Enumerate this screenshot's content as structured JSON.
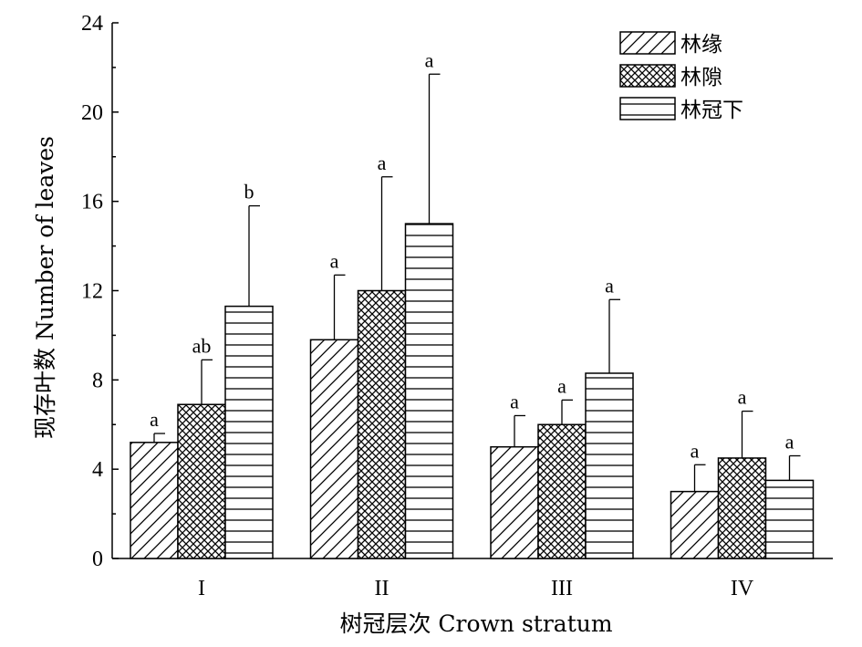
{
  "chart_data": {
    "type": "bar",
    "xlabel": "树冠层次 Crown stratum",
    "ylabel": "现存叶数 Number of leaves",
    "ylim": [
      0,
      24
    ],
    "yticks": [
      0,
      4,
      8,
      12,
      16,
      20,
      24
    ],
    "categories": [
      "I",
      "II",
      "III",
      "IV"
    ],
    "legend_position": "top-right",
    "grid": false,
    "series": [
      {
        "name": "林缘",
        "pattern": "diagonal-hatch",
        "values": [
          5.2,
          9.8,
          5.0,
          3.0
        ],
        "errors": [
          0.4,
          2.9,
          1.4,
          1.2
        ],
        "significance": [
          "a",
          "a",
          "a",
          "a"
        ]
      },
      {
        "name": "林隙",
        "pattern": "crosshatch",
        "values": [
          6.9,
          12.0,
          6.0,
          4.5
        ],
        "errors": [
          2.0,
          5.1,
          1.1,
          2.1
        ],
        "significance": [
          "ab",
          "a",
          "a",
          "a"
        ]
      },
      {
        "name": "林冠下",
        "pattern": "horizontal-lines",
        "values": [
          11.3,
          15.0,
          8.3,
          3.5
        ],
        "errors": [
          4.5,
          6.7,
          3.3,
          1.1
        ],
        "significance": [
          "b",
          "a",
          "a",
          "a"
        ]
      }
    ]
  }
}
